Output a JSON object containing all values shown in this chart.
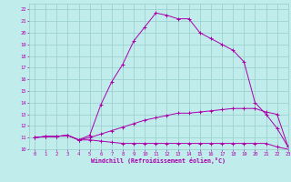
{
  "xlabel": "Windchill (Refroidissement éolien,°C)",
  "bg_color": "#c0ecec",
  "grid_color": "#98cccc",
  "line_color": "#aa00aa",
  "xlim": [
    -0.5,
    23
  ],
  "ylim": [
    10,
    22.5
  ],
  "xticks": [
    0,
    1,
    2,
    3,
    4,
    5,
    6,
    7,
    8,
    9,
    10,
    11,
    12,
    13,
    14,
    15,
    16,
    17,
    18,
    19,
    20,
    21,
    22,
    23
  ],
  "yticks": [
    10,
    11,
    12,
    13,
    14,
    15,
    16,
    17,
    18,
    19,
    20,
    21,
    22
  ],
  "curve_main_x": [
    0,
    1,
    2,
    3,
    4,
    5,
    6,
    7,
    8,
    9,
    10,
    11,
    12,
    13,
    14,
    15,
    16,
    17,
    18,
    19,
    20,
    21,
    22,
    23
  ],
  "curve_main_y": [
    11.0,
    11.1,
    11.1,
    11.2,
    10.8,
    11.2,
    13.8,
    15.8,
    17.3,
    19.3,
    20.5,
    21.7,
    21.5,
    21.2,
    21.2,
    20.0,
    19.5,
    19.0,
    18.5,
    17.5,
    14.0,
    13.0,
    11.8,
    10.2
  ],
  "curve_mid_x": [
    0,
    1,
    2,
    3,
    4,
    5,
    6,
    7,
    8,
    9,
    10,
    11,
    12,
    13,
    14,
    15,
    16,
    17,
    18,
    19,
    20,
    21,
    22,
    23
  ],
  "curve_mid_y": [
    11.0,
    11.1,
    11.1,
    11.2,
    10.8,
    11.0,
    11.3,
    11.6,
    11.9,
    12.2,
    12.5,
    12.7,
    12.9,
    13.1,
    13.1,
    13.2,
    13.3,
    13.4,
    13.5,
    13.5,
    13.5,
    13.2,
    13.0,
    10.2
  ],
  "curve_flat_x": [
    0,
    1,
    2,
    3,
    4,
    5,
    6,
    7,
    8,
    9,
    10,
    11,
    12,
    13,
    14,
    15,
    16,
    17,
    18,
    19,
    20,
    21,
    22,
    23
  ],
  "curve_flat_y": [
    11.0,
    11.1,
    11.1,
    11.2,
    10.8,
    10.8,
    10.7,
    10.6,
    10.5,
    10.5,
    10.5,
    10.5,
    10.5,
    10.5,
    10.5,
    10.5,
    10.5,
    10.5,
    10.5,
    10.5,
    10.5,
    10.5,
    10.2,
    10.0
  ]
}
